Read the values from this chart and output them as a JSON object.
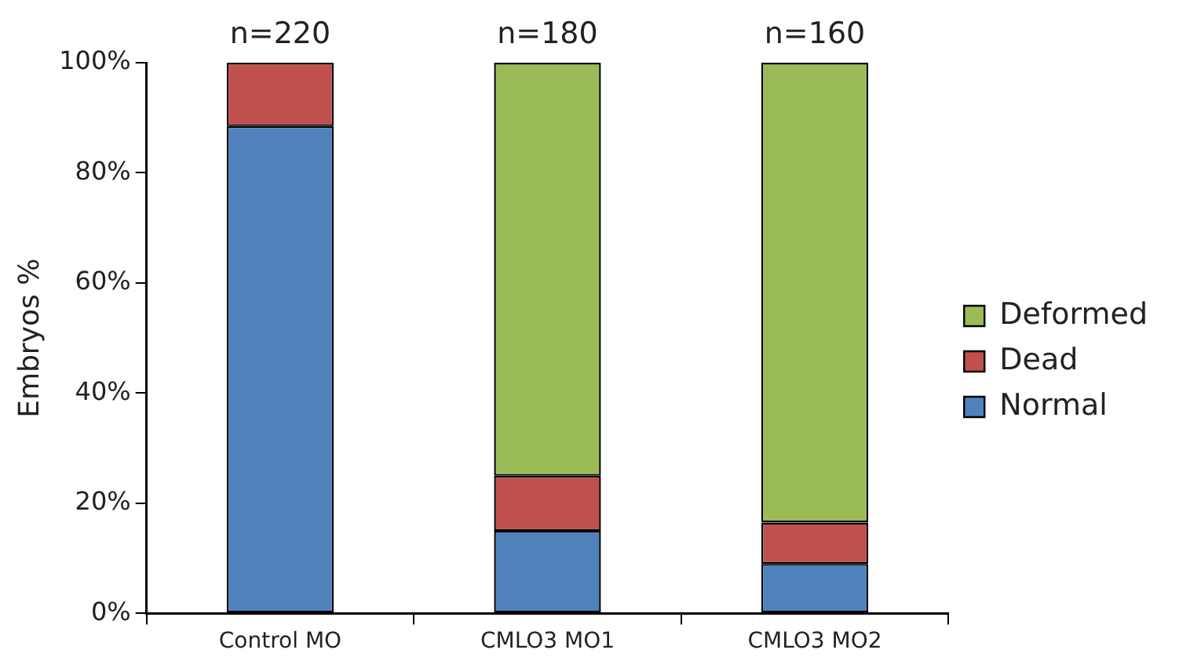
{
  "chart_data": {
    "type": "bar",
    "stacked": true,
    "ylabel": "Embryos %",
    "categories": [
      "Control MO",
      "CMLO3 MO1",
      "CMLO3 MO2"
    ],
    "series": [
      {
        "name": "Normal",
        "color": "#4f81bd",
        "values": [
          88.5,
          15,
          9
        ]
      },
      {
        "name": "Dead",
        "color": "#c0504d",
        "values": [
          11.5,
          10,
          7.5
        ]
      },
      {
        "name": "Deformed",
        "color": "#9bbb59",
        "values": [
          0,
          75,
          83.5
        ]
      }
    ],
    "ylim": [
      0,
      100
    ],
    "yticks": [
      {
        "value": 0,
        "label": "0%"
      },
      {
        "value": 20,
        "label": "20%"
      },
      {
        "value": 40,
        "label": "40%"
      },
      {
        "value": 60,
        "label": "60%"
      },
      {
        "value": 80,
        "label": "80%"
      },
      {
        "value": 100,
        "label": "100%"
      }
    ],
    "annotations": [
      "n=220",
      "n=180",
      "n=160"
    ],
    "grid": false,
    "legend": "right"
  }
}
